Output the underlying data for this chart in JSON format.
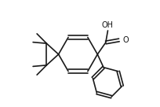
{
  "bg_color": "#ffffff",
  "bond_color": "#1a1a1a",
  "text_color": "#111111",
  "line_width": 1.2,
  "figsize": [
    2.05,
    1.36
  ],
  "dpi": 100,
  "xlim": [
    0,
    10
  ],
  "ylim": [
    0,
    6.6
  ]
}
